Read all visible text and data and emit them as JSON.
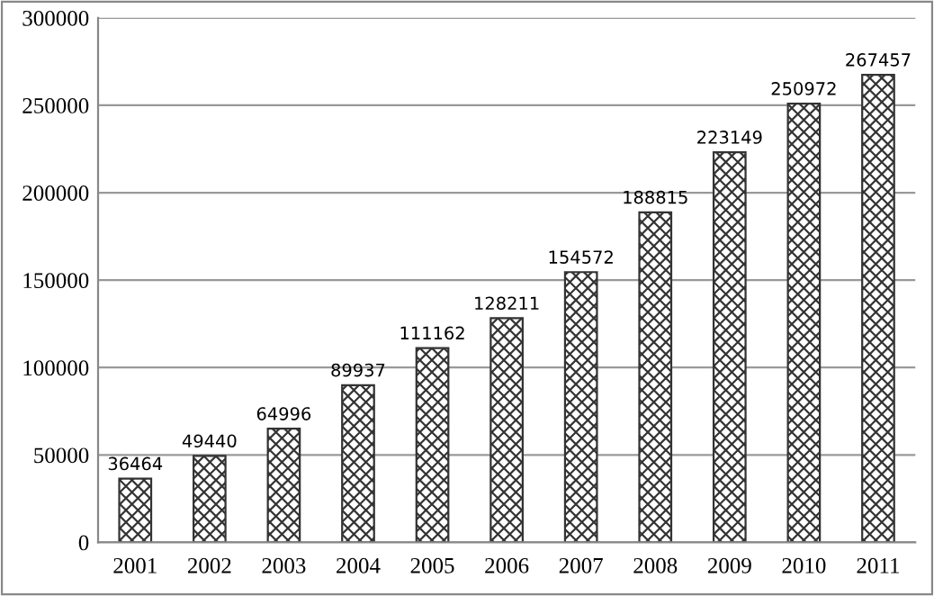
{
  "chart_data": {
    "type": "bar",
    "categories": [
      "2001",
      "2002",
      "2003",
      "2004",
      "2005",
      "2006",
      "2007",
      "2008",
      "2009",
      "2010",
      "2011"
    ],
    "values": [
      36464,
      49440,
      64996,
      89937,
      111162,
      128211,
      154572,
      188815,
      223149,
      250972,
      267457
    ],
    "color": "#333333",
    "ylim": [
      0,
      300000
    ],
    "yticks": [
      0,
      50000,
      100000,
      150000,
      200000,
      250000,
      300000
    ],
    "grid": "y",
    "data_labels": true
  }
}
